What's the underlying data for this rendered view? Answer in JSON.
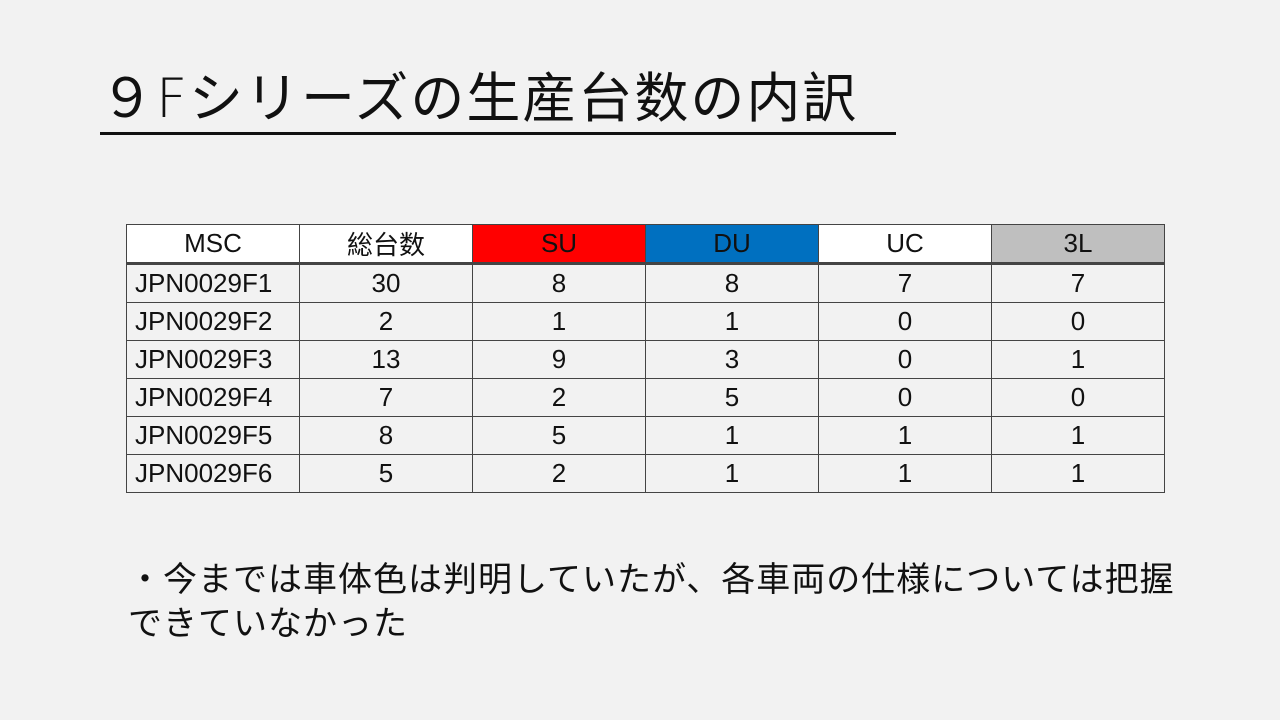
{
  "title": "９Fシリーズの生産台数の内訳",
  "table": {
    "headers": [
      {
        "label": "MSC",
        "bg": "#ffffff"
      },
      {
        "label": "総台数",
        "bg": "#ffffff"
      },
      {
        "label": "SU",
        "bg": "#ff0000"
      },
      {
        "label": "DU",
        "bg": "#0070c0"
      },
      {
        "label": "UC",
        "bg": "#ffffff"
      },
      {
        "label": "3L",
        "bg": "#bfbfbf"
      }
    ],
    "rows": [
      [
        "JPN0029F1",
        "30",
        "8",
        "8",
        "7",
        "7"
      ],
      [
        "JPN0029F2",
        "2",
        "1",
        "1",
        "0",
        "0"
      ],
      [
        "JPN0029F3",
        "13",
        "9",
        "3",
        "0",
        "1"
      ],
      [
        "JPN0029F4",
        "7",
        "2",
        "5",
        "0",
        "0"
      ],
      [
        "JPN0029F5",
        "8",
        "5",
        "1",
        "1",
        "1"
      ],
      [
        "JPN0029F6",
        "5",
        "2",
        "1",
        "1",
        "1"
      ]
    ]
  },
  "bullet": "・今までは車体色は判明していたが、各車両の仕様については把握できていなかった"
}
